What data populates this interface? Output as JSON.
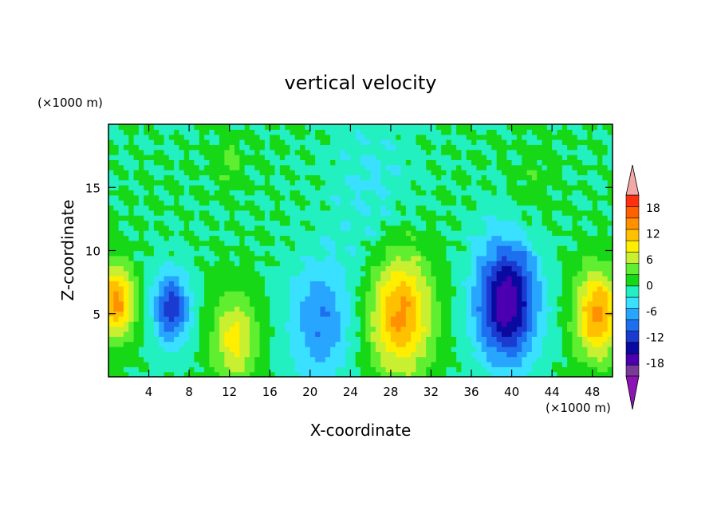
{
  "chart_data": {
    "type": "heatmap",
    "title": "vertical velocity",
    "xlabel": "X-coordinate",
    "ylabel": "Z-coordinate",
    "x_unit": "(×1000 m)",
    "y_unit": "(×1000 m)",
    "xlim": [
      0,
      50
    ],
    "ylim": [
      0,
      20
    ],
    "x_ticks": [
      4,
      8,
      12,
      16,
      20,
      24,
      28,
      32,
      36,
      40,
      44,
      48
    ],
    "y_ticks": [
      5,
      10,
      15
    ],
    "grid": false,
    "colorbar": {
      "placement": "right",
      "min": -21,
      "max": 21,
      "step": 3,
      "tick_labels": [
        "18",
        "12",
        "6",
        "0",
        "-6",
        "-12",
        "-18"
      ],
      "tick_values": [
        18,
        12,
        6,
        0,
        -6,
        -12,
        -18
      ],
      "extend": "both",
      "colors": [
        "#7a3a9a",
        "#4a00b0",
        "#0a0aa0",
        "#1a3ad0",
        "#1e6ef0",
        "#28a6ff",
        "#3ae0ff",
        "#22f0c0",
        "#17d817",
        "#60ee30",
        "#c8f030",
        "#ffee00",
        "#ffc000",
        "#ff9000",
        "#ff6000",
        "#ff3010"
      ],
      "extend_low_color": "#8c14b4",
      "extend_high_color": "#f4a7a7"
    },
    "features": [
      {
        "x": 0.8,
        "z": 6.0,
        "w": 1.8,
        "amplitude": 14
      },
      {
        "x": 6.2,
        "z": 5.5,
        "w": 1.8,
        "amplitude": -12
      },
      {
        "x": 12.5,
        "z": 3.0,
        "w": 2.2,
        "amplitude": 9
      },
      {
        "x": 21.0,
        "z": 4.5,
        "w": 3.0,
        "amplitude": -8
      },
      {
        "x": 29.0,
        "z": 5.0,
        "w": 3.0,
        "amplitude": 14
      },
      {
        "x": 39.5,
        "z": 6.0,
        "w": 3.0,
        "amplitude": -18
      },
      {
        "x": 48.5,
        "z": 5.0,
        "w": 2.2,
        "amplitude": 14
      },
      {
        "x": 12.0,
        "z": 17.0,
        "w": 1.2,
        "amplitude": 4
      },
      {
        "x": 42.0,
        "z": 15.0,
        "w": 2.0,
        "amplitude": 2
      },
      {
        "x": 26.0,
        "z": 15.0,
        "w": 4.0,
        "amplitude": -3
      }
    ]
  }
}
